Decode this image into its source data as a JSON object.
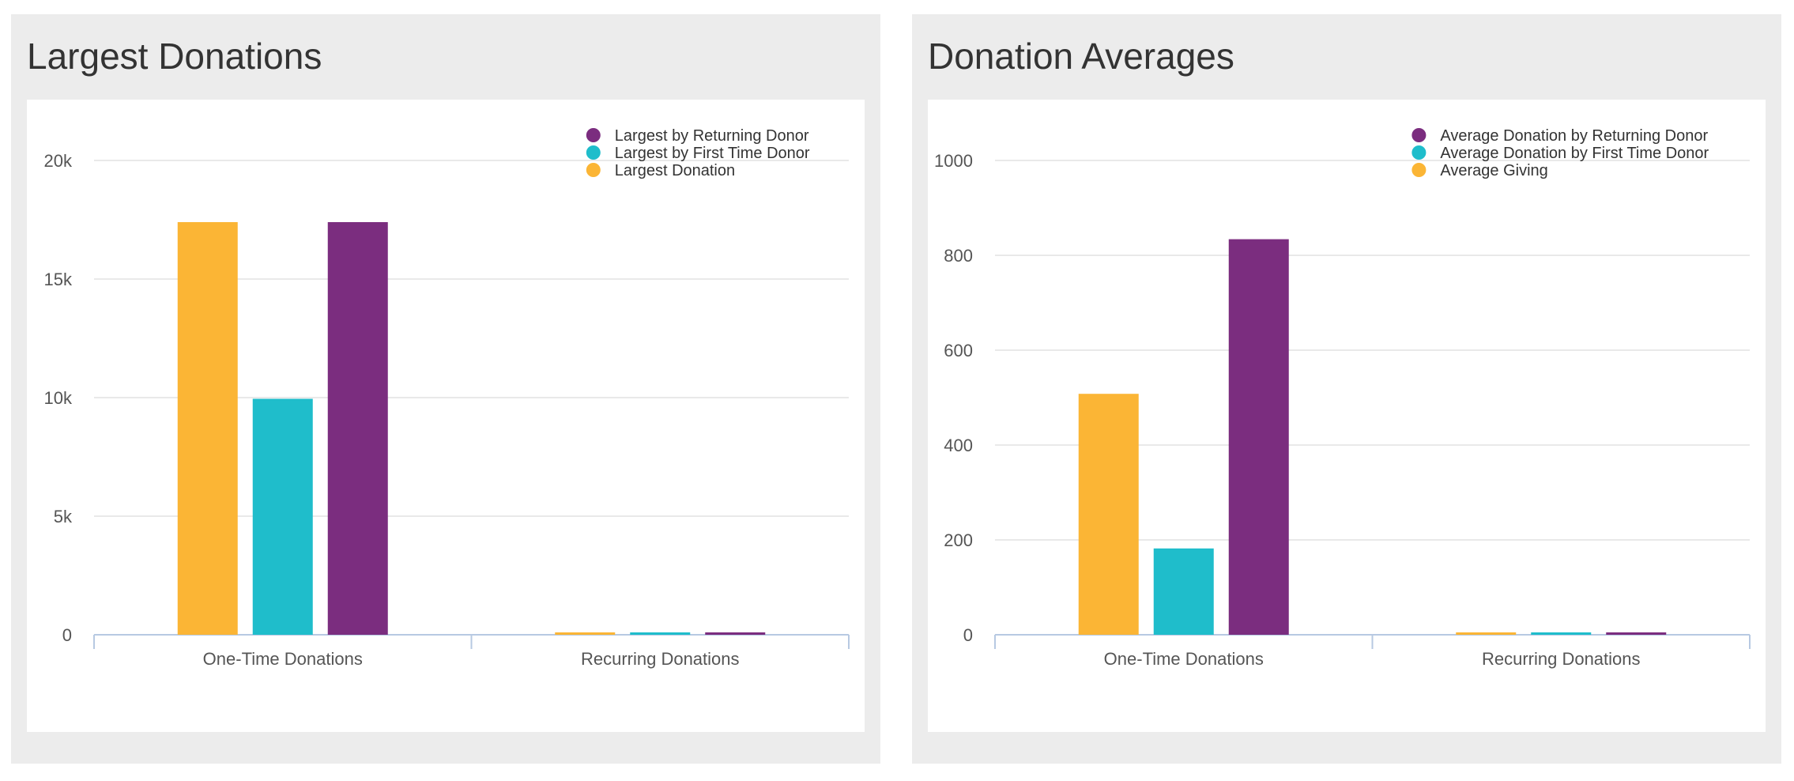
{
  "panels": [
    {
      "title": "Largest Donations"
    },
    {
      "title": "Donation Averages"
    }
  ],
  "colors": {
    "returning": "#7b2d7f",
    "first_time": "#1fbdcb",
    "overall": "#fbb535",
    "gridline": "#e2e2e2",
    "axis": "#b7c9e2"
  },
  "chart_data": [
    {
      "type": "bar",
      "title": "Largest Donations",
      "categories": [
        "One-Time Donations",
        "Recurring Donations"
      ],
      "series": [
        {
          "name": "Largest Donation",
          "values": [
            17400,
            100
          ]
        },
        {
          "name": "Largest by First Time Donor",
          "values": [
            9950,
            100
          ]
        },
        {
          "name": "Largest by Returning Donor",
          "values": [
            17400,
            100
          ]
        }
      ],
      "legend_order": [
        2,
        1,
        0
      ],
      "yticks": [
        0,
        5000,
        10000,
        15000,
        20000
      ],
      "ytick_labels": [
        "0",
        "5k",
        "10k",
        "15k",
        "20k"
      ],
      "ylim": [
        0,
        20000
      ],
      "legend_position": "top-right",
      "grid": true
    },
    {
      "type": "bar",
      "title": "Donation Averages",
      "categories": [
        "One-Time Donations",
        "Recurring Donations"
      ],
      "series": [
        {
          "name": "Average Giving",
          "values": [
            508,
            5
          ]
        },
        {
          "name": "Average Donation by First Time Donor",
          "values": [
            182,
            5
          ]
        },
        {
          "name": "Average Donation by Returning Donor",
          "values": [
            834,
            5
          ]
        }
      ],
      "legend_order": [
        2,
        1,
        0
      ],
      "yticks": [
        0,
        200,
        400,
        600,
        800,
        1000
      ],
      "ytick_labels": [
        "0",
        "200",
        "400",
        "600",
        "800",
        "1000"
      ],
      "ylim": [
        0,
        1000
      ],
      "legend_position": "top-right",
      "grid": true
    }
  ]
}
